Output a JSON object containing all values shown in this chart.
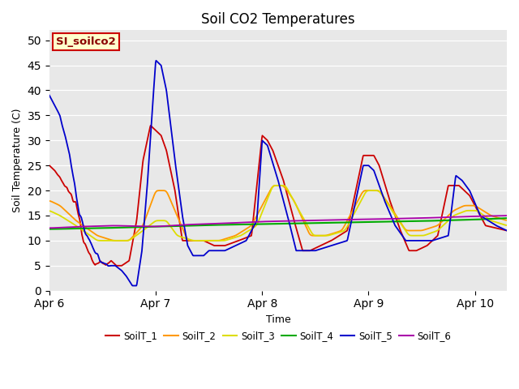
{
  "title": "Soil CO2 Temperatures",
  "xlabel": "Time",
  "ylabel": "Soil Temperature (C)",
  "ylim": [
    0,
    52
  ],
  "xlim": [
    0,
    4.3
  ],
  "background_color": "#e8e8e8",
  "annotation_text": "SI_soilco2",
  "annotation_bg": "#ffffcc",
  "annotation_border": "#cc0000",
  "series_colors": {
    "SoilT_1": "#cc0000",
    "SoilT_2": "#ff9900",
    "SoilT_3": "#dddd00",
    "SoilT_4": "#00aa00",
    "SoilT_5": "#0000cc",
    "SoilT_6": "#aa00aa"
  },
  "xtick_labels": [
    "Apr 6",
    "Apr 7",
    "Apr 8",
    "Apr 9",
    "Apr 10"
  ],
  "xtick_positions": [
    0,
    1,
    2,
    3,
    4
  ],
  "ytick_positions": [
    0,
    5,
    10,
    15,
    20,
    25,
    30,
    35,
    40,
    45,
    50
  ]
}
